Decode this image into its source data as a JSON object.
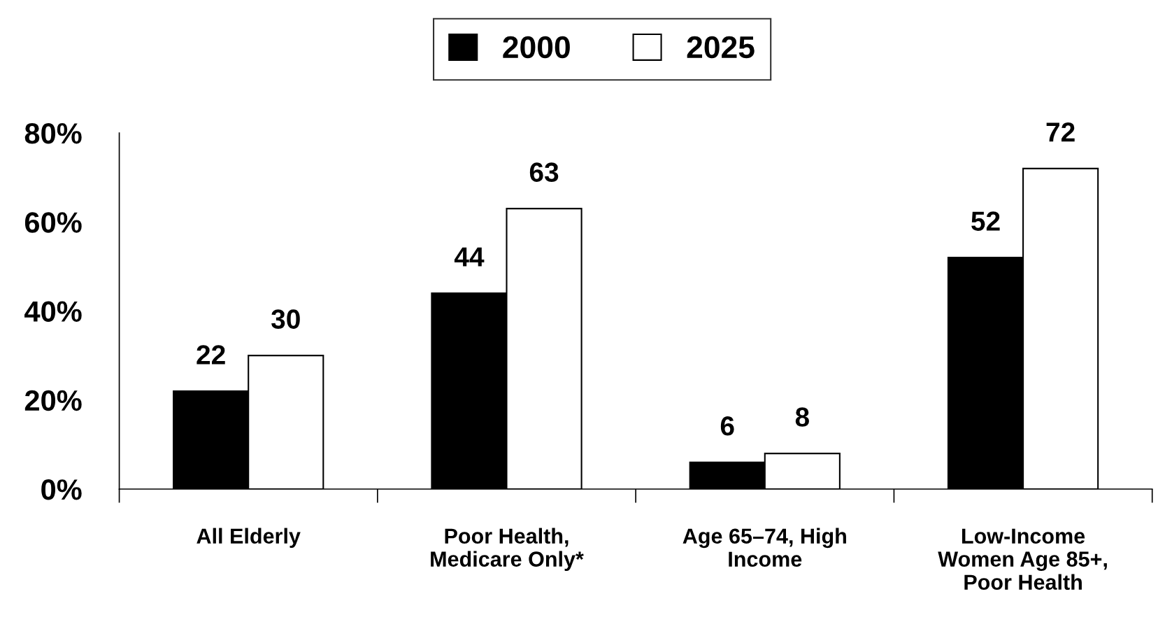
{
  "chart_data": {
    "type": "bar",
    "categories": [
      "All Elderly",
      "Poor Health,\nMedicare Only*",
      "Age 65–74, High\nIncome",
      "Low-Income\nWomen Age 85+,\nPoor Health"
    ],
    "series": [
      {
        "name": "2000",
        "color": "#000000",
        "values": [
          22,
          44,
          6,
          52
        ]
      },
      {
        "name": "2025",
        "color": "#ffffff",
        "values": [
          30,
          63,
          8,
          72
        ]
      }
    ],
    "ylim": [
      0,
      80
    ],
    "yticks": [
      {
        "value": 0,
        "label": "0%"
      },
      {
        "value": 20,
        "label": "20%"
      },
      {
        "value": 40,
        "label": "40%"
      },
      {
        "value": 60,
        "label": "60%"
      },
      {
        "value": 80,
        "label": "80%"
      }
    ],
    "data_labels": true,
    "grid": false,
    "legend": "top"
  }
}
